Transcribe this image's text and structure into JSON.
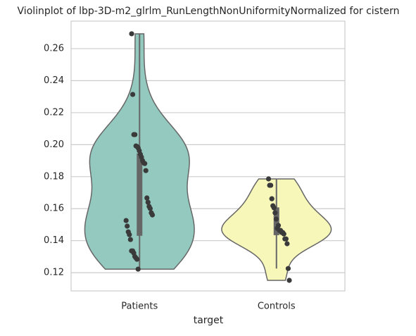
{
  "chart_data": {
    "type": "violin",
    "title": "Violinplot of lbp-3D-m2_glrlm_RunLengthNonUniformityNormalized for cistern",
    "xlabel": "target",
    "categories": [
      "Patients",
      "Controls"
    ],
    "colors": [
      "#93c9bf",
      "#f7f7b9"
    ],
    "values": [
      [
        0.2693,
        0.2314,
        0.2063,
        0.2063,
        0.1992,
        0.1988,
        0.1979,
        0.1962,
        0.194,
        0.1922,
        0.19,
        0.1887,
        0.1882,
        0.1838,
        0.1667,
        0.164,
        0.1614,
        0.1601,
        0.1574,
        0.1561,
        0.1526,
        0.1491,
        0.1455,
        0.1438,
        0.1407,
        0.1336,
        0.1336,
        0.1323,
        0.1301,
        0.1292,
        0.1284,
        0.1222
      ],
      [
        0.1786,
        0.1746,
        0.1746,
        0.1662,
        0.1618,
        0.1605,
        0.1574,
        0.1535,
        0.1477,
        0.1495,
        0.1464,
        0.1464,
        0.1451,
        0.1451,
        0.1442,
        0.1411,
        0.1411,
        0.1381,
        0.1226,
        0.1152
      ]
    ],
    "ylim": [
      0.1086,
      0.2772
    ],
    "yticks": [
      0.12,
      0.14,
      0.16,
      0.18,
      {
        "value": 0.2,
        "label": "0.20"
      },
      0.22,
      0.24,
      0.26
    ],
    "grid": true
  }
}
